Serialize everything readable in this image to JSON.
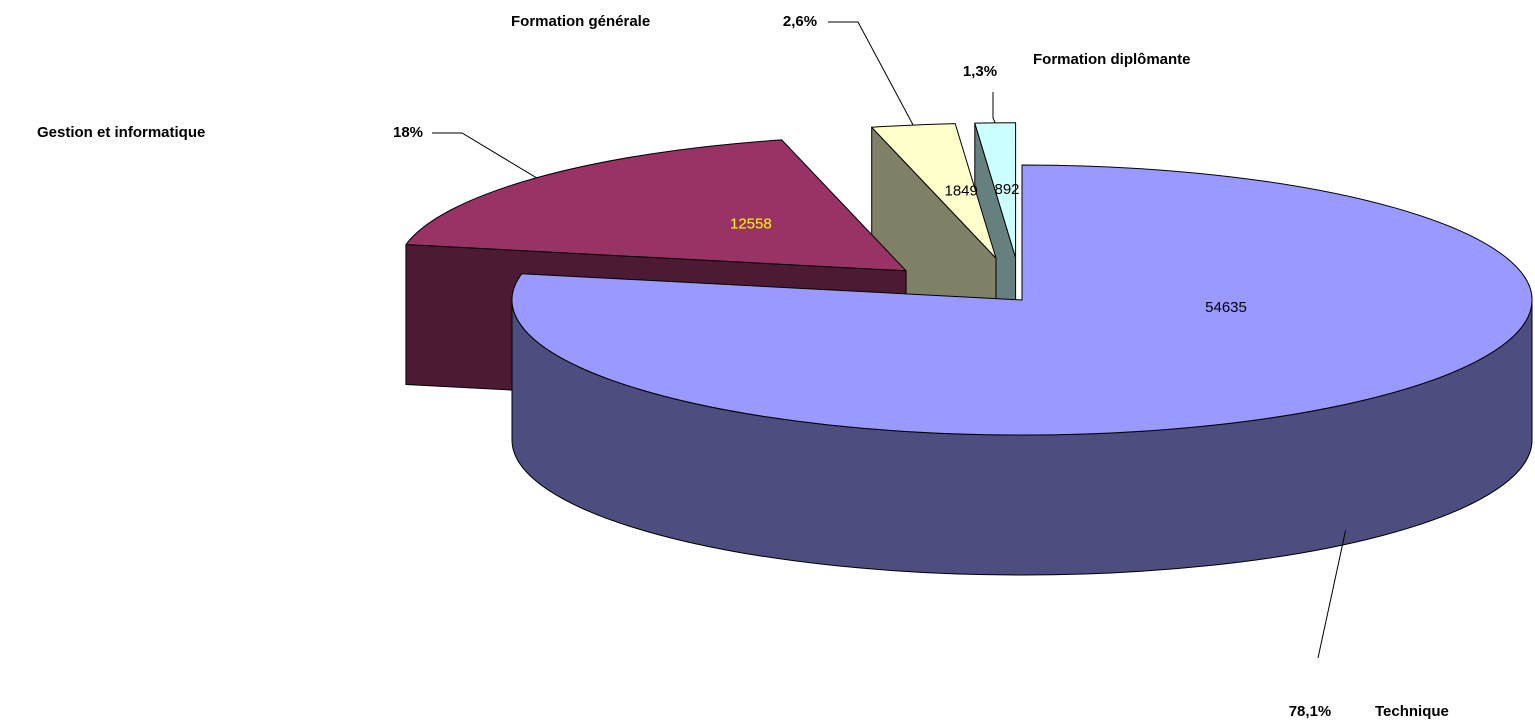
{
  "chart_data": {
    "type": "pie3d",
    "categories": [
      "Technique",
      "Gestion et informatique",
      "Formation générale",
      "Formation diplômante"
    ],
    "values": [
      54635,
      12558,
      1849,
      892
    ],
    "percent_labels": [
      "78,1%",
      "18%",
      "2,6%",
      "1,3%"
    ],
    "colors": [
      "#9999ff",
      "#993366",
      "#ffffcc",
      "#ccffff"
    ]
  }
}
